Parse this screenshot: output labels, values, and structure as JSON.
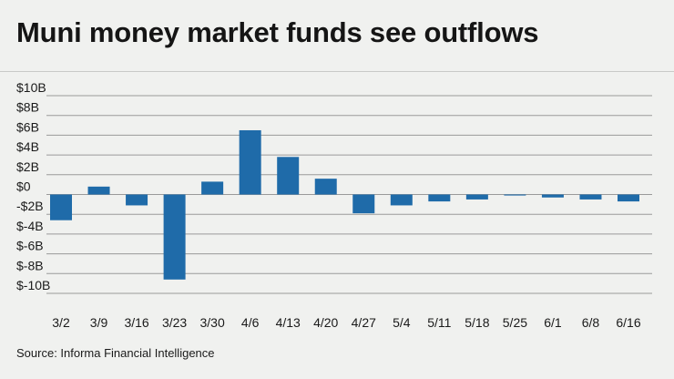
{
  "header": {
    "title": "Muni money market funds see outflows"
  },
  "footer": {
    "source": "Source: Informa Financial Intelligence"
  },
  "colors": {
    "bar": "#1f6ba9",
    "grid": "#9a9a9a",
    "background": "#f0f1ef"
  },
  "chart_data": {
    "type": "bar",
    "title": "Muni money market funds see outflows",
    "xlabel": "",
    "ylabel": "",
    "unit": "billions of dollars",
    "ylim": [
      -10,
      10
    ],
    "yticks": [
      10,
      8,
      6,
      4,
      2,
      0,
      -2,
      -4,
      -6,
      -8,
      -10
    ],
    "ytick_labels": [
      "$10B",
      "$8B",
      "$6B",
      "$4B",
      "$2B",
      "$0",
      "-$2B",
      "$-4B",
      "$-6B",
      "$-8B",
      "$-10B"
    ],
    "grid": true,
    "categories": [
      "3/2",
      "3/9",
      "3/16",
      "3/23",
      "3/30",
      "4/6",
      "4/13",
      "4/20",
      "4/27",
      "5/4",
      "5/11",
      "5/18",
      "5/25",
      "6/1",
      "6/8",
      "6/16"
    ],
    "values": [
      -2.6,
      0.8,
      -1.1,
      -8.6,
      1.3,
      6.5,
      3.8,
      1.6,
      -1.9,
      -1.1,
      -0.7,
      -0.5,
      -0.1,
      -0.3,
      -0.5,
      -0.7
    ]
  }
}
